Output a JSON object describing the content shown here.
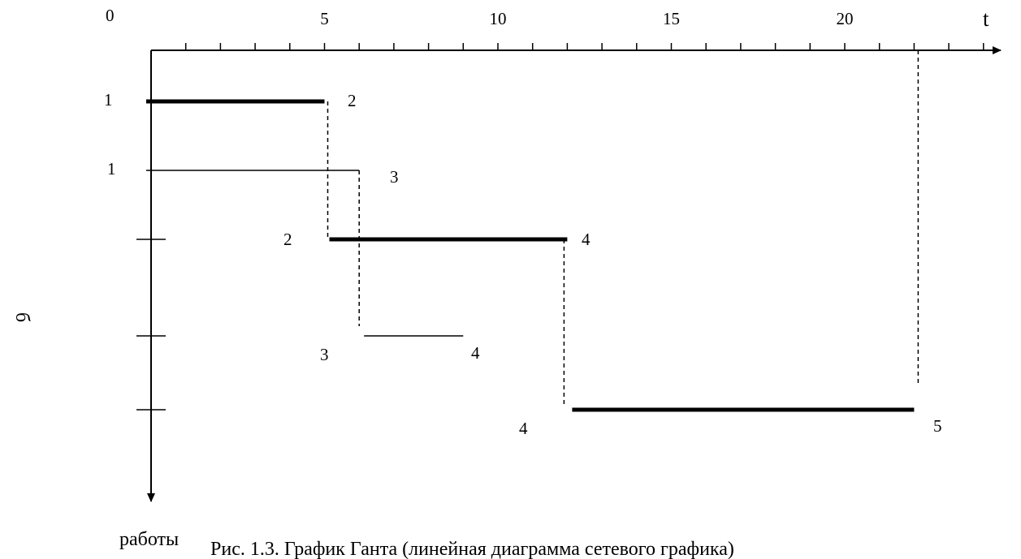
{
  "diagram": {
    "type": "gantt",
    "x_axis": {
      "label": "t",
      "origin_label": "0",
      "tick_labels": [
        {
          "value": 5,
          "label": "5"
        },
        {
          "value": 10,
          "label": "10"
        },
        {
          "value": 15,
          "label": "15"
        },
        {
          "value": 20,
          "label": "20"
        }
      ],
      "range": [
        0,
        24
      ]
    },
    "y_axis": {
      "label": "работы",
      "side_mark": "б"
    },
    "tasks": [
      {
        "start_event": "1",
        "end_event": "2",
        "start": 0,
        "end": 5,
        "critical": true
      },
      {
        "start_event": "1",
        "end_event": "3",
        "start": 0,
        "end": 6,
        "critical": false
      },
      {
        "start_event": "2",
        "end_event": "4",
        "start": 5,
        "end": 12,
        "critical": true
      },
      {
        "start_event": "3",
        "end_event": "4",
        "start": 6,
        "end": 9,
        "critical": false
      },
      {
        "start_event": "4",
        "end_event": "5",
        "start": 12,
        "end": 22,
        "critical": true
      }
    ],
    "caption": "Рис. 1.3. График Ганта (линейная диаграмма сетевого графика)"
  }
}
